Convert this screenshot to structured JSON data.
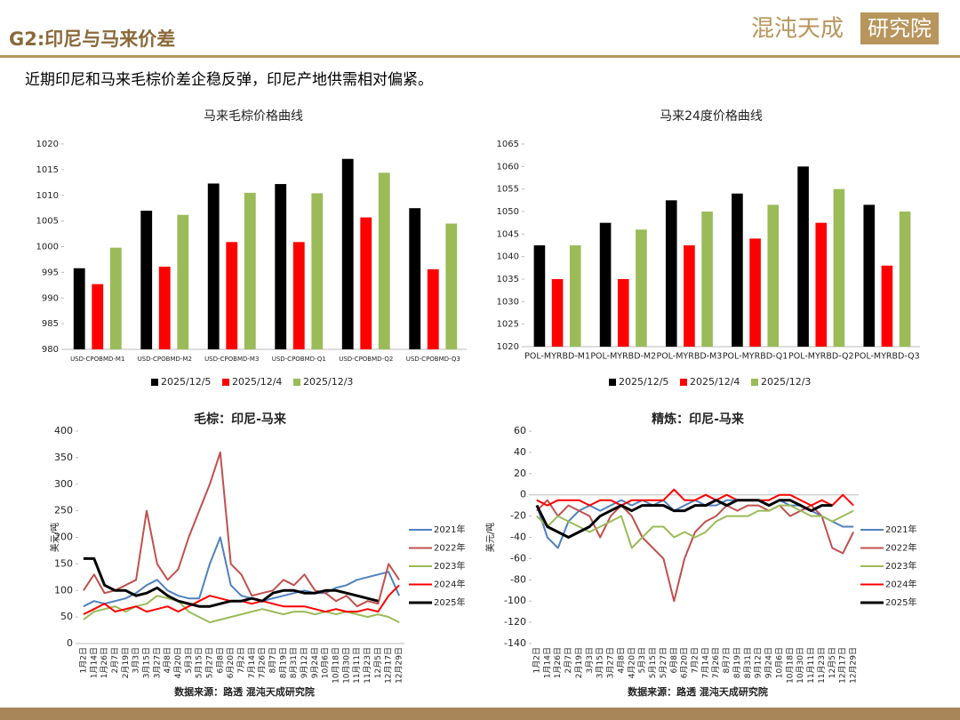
{
  "header": {
    "title": "G2:印尼与马来价差",
    "logo_main": "混沌天成",
    "logo_box": "研究院",
    "summary": "近期印尼和马来毛棕价差企稳反弹，印尼产地供需相对偏紧。"
  },
  "chart_data": [
    {
      "type": "bar",
      "title": "马来毛棕价格曲线",
      "legend": "bottom",
      "categories": [
        "USD-CPOBMD-M1",
        "USD-CPOBMD-M2",
        "USD-CPOBMD-M3",
        "USD-CPOBMD-Q1",
        "USD-CPOBMD-Q2",
        "USD-CPOBMD-Q3"
      ],
      "series": [
        {
          "name": "2025/12/5",
          "color": "#000000",
          "values": [
            995.8,
            1007,
            1012.3,
            1012.2,
            1017.1,
            1007.5
          ]
        },
        {
          "name": "2025/12/4",
          "color": "#ff0000",
          "values": [
            992.7,
            996.1,
            1000.9,
            1000.9,
            1005.7,
            995.6
          ]
        },
        {
          "name": "2025/12/3",
          "color": "#9bbb59",
          "values": [
            999.8,
            1006.2,
            1010.5,
            1010.4,
            1014.4,
            1004.5
          ]
        }
      ],
      "ylim": [
        980,
        1020
      ],
      "yticks": [
        980,
        985,
        990,
        995,
        1000,
        1005,
        1010,
        1015,
        1020
      ]
    },
    {
      "type": "bar",
      "title": "马来24度价格曲线",
      "legend": "bottom",
      "categories": [
        "POL-MYRBD-M1",
        "POL-MYRBD-M2",
        "POL-MYRBD-M3",
        "POL-MYRBD-Q1",
        "POL-MYRBD-Q2",
        "POL-MYRBD-Q3"
      ],
      "series": [
        {
          "name": "2025/12/5",
          "color": "#000000",
          "values": [
            1042.5,
            1047.5,
            1052.5,
            1054,
            1060,
            1051.5
          ]
        },
        {
          "name": "2025/12/4",
          "color": "#ff0000",
          "values": [
            1035,
            1035,
            1042.5,
            1044,
            1047.5,
            1038
          ]
        },
        {
          "name": "2025/12/3",
          "color": "#9bbb59",
          "values": [
            1042.5,
            1046,
            1050,
            1051.5,
            1055,
            1050
          ]
        }
      ],
      "ylim": [
        1020,
        1065
      ],
      "yticks": [
        1020,
        1025,
        1030,
        1035,
        1040,
        1045,
        1050,
        1055,
        1060,
        1065
      ]
    },
    {
      "type": "line",
      "title": "毛棕：印尼-马来",
      "y_label": "美元/吨",
      "source": "数据来源：路透 混沌天成研究院",
      "legend": "right",
      "categories": [
        "1月2日",
        "1月14日",
        "1月26日",
        "2月7日",
        "2月19日",
        "3月3日",
        "3月15日",
        "3月27日",
        "4月8日",
        "4月20日",
        "5月3日",
        "5月15日",
        "5月27日",
        "6月8日",
        "6月20日",
        "7月2日",
        "7月14日",
        "7月26日",
        "8月7日",
        "8月19日",
        "8月31日",
        "9月12日",
        "9月24日",
        "10月6日",
        "10月18日",
        "10月30日",
        "11月11日",
        "11月23日",
        "12月5日",
        "12月17日",
        "12月29日"
      ],
      "series": [
        {
          "name": "2021年",
          "color": "#4f81bd",
          "width": 2,
          "values": [
            70,
            80,
            75,
            80,
            85,
            95,
            110,
            120,
            100,
            90,
            85,
            85,
            150,
            200,
            110,
            90,
            85,
            80,
            85,
            90,
            95,
            100,
            95,
            95,
            105,
            110,
            120,
            125,
            130,
            135,
            90
          ]
        },
        {
          "name": "2022年",
          "color": "#c0504d",
          "width": 2,
          "values": [
            100,
            130,
            95,
            100,
            110,
            120,
            250,
            150,
            120,
            140,
            200,
            250,
            300,
            360,
            150,
            130,
            90,
            95,
            100,
            120,
            110,
            130,
            100,
            95,
            80,
            90,
            70,
            80,
            75,
            150,
            120
          ]
        },
        {
          "name": "2023年",
          "color": "#9bbb59",
          "width": 2,
          "values": [
            45,
            60,
            65,
            70,
            60,
            70,
            75,
            90,
            85,
            80,
            60,
            50,
            40,
            45,
            50,
            55,
            60,
            65,
            60,
            55,
            60,
            60,
            55,
            60,
            55,
            60,
            55,
            50,
            55,
            50,
            40
          ]
        },
        {
          "name": "2024年",
          "color": "#ff0000",
          "width": 2,
          "values": [
            55,
            65,
            75,
            60,
            65,
            70,
            60,
            65,
            70,
            60,
            70,
            80,
            90,
            85,
            80,
            80,
            75,
            80,
            75,
            70,
            70,
            70,
            65,
            60,
            65,
            60,
            60,
            65,
            60,
            90,
            110
          ]
        },
        {
          "name": "2025年",
          "color": "#000000",
          "width": 3,
          "values": [
            160,
            160,
            110,
            100,
            100,
            90,
            95,
            105,
            90,
            80,
            75,
            70,
            70,
            75,
            80,
            80,
            85,
            80,
            95,
            100,
            100,
            95,
            95,
            100,
            100,
            95,
            90,
            85,
            80,
            null,
            null
          ]
        }
      ],
      "ylim": [
        0,
        400
      ],
      "yticks": [
        0,
        50,
        100,
        150,
        200,
        250,
        300,
        350,
        400
      ]
    },
    {
      "type": "line",
      "title": "精炼：印尼-马来",
      "y_label": "美元/吨",
      "source": "数据来源：路透 混沌天成研究院",
      "legend": "right",
      "categories": [
        "1月2日",
        "1月14日",
        "1月26日",
        "2月7日",
        "2月19日",
        "3月3日",
        "3月15日",
        "3月27日",
        "4月8日",
        "4月20日",
        "5月3日",
        "5月15日",
        "5月27日",
        "6月8日",
        "6月20日",
        "7月2日",
        "7月14日",
        "7月26日",
        "8月7日",
        "8月19日",
        "8月31日",
        "9月12日",
        "9月24日",
        "10月6日",
        "10月18日",
        "10月30日",
        "11月11日",
        "11月23日",
        "12月5日",
        "12月17日",
        "12月29日"
      ],
      "series": [
        {
          "name": "2021年",
          "color": "#4f81bd",
          "width": 2,
          "values": [
            -10,
            -40,
            -50,
            -25,
            -15,
            -10,
            -15,
            -10,
            -5,
            -10,
            -5,
            -10,
            -5,
            -15,
            -10,
            -5,
            -10,
            -10,
            -5,
            -5,
            -5,
            -5,
            -10,
            -5,
            -10,
            -10,
            -15,
            -20,
            -25,
            -30,
            -30
          ]
        },
        {
          "name": "2022年",
          "color": "#c0504d",
          "width": 2,
          "values": [
            -15,
            -5,
            -20,
            -10,
            -15,
            -20,
            -40,
            -20,
            -10,
            -20,
            -40,
            -50,
            -60,
            -100,
            -60,
            -35,
            -25,
            -20,
            -10,
            -15,
            -10,
            -10,
            -15,
            -10,
            -20,
            -15,
            -10,
            -20,
            -50,
            -55,
            -35
          ]
        },
        {
          "name": "2023年",
          "color": "#9bbb59",
          "width": 2,
          "values": [
            -20,
            -30,
            -20,
            -25,
            -30,
            -35,
            -30,
            -25,
            -20,
            -50,
            -40,
            -30,
            -30,
            -40,
            -35,
            -40,
            -35,
            -25,
            -20,
            -20,
            -20,
            -15,
            -15,
            -10,
            -10,
            -15,
            -20,
            -20,
            -25,
            -20,
            -15
          ]
        },
        {
          "name": "2024年",
          "color": "#ff0000",
          "width": 2,
          "values": [
            -5,
            -10,
            -5,
            -5,
            -5,
            -10,
            -5,
            -5,
            -10,
            -5,
            -5,
            -5,
            -5,
            5,
            -5,
            -5,
            0,
            -5,
            0,
            -5,
            -5,
            -5,
            -5,
            0,
            0,
            -5,
            -10,
            -5,
            -10,
            0,
            -10
          ]
        },
        {
          "name": "2025年",
          "color": "#000000",
          "width": 3,
          "values": [
            -10,
            -30,
            -35,
            -40,
            -35,
            -30,
            -20,
            -15,
            -10,
            -15,
            -10,
            -10,
            -10,
            -15,
            -15,
            -10,
            -10,
            -5,
            -10,
            -5,
            -5,
            -5,
            -10,
            -5,
            -5,
            -10,
            -15,
            -10,
            -10,
            null,
            null
          ]
        }
      ],
      "ylim": [
        -140,
        60
      ],
      "yticks": [
        -140,
        -120,
        -100,
        -80,
        -60,
        -40,
        -20,
        0,
        20,
        40,
        60
      ]
    }
  ]
}
